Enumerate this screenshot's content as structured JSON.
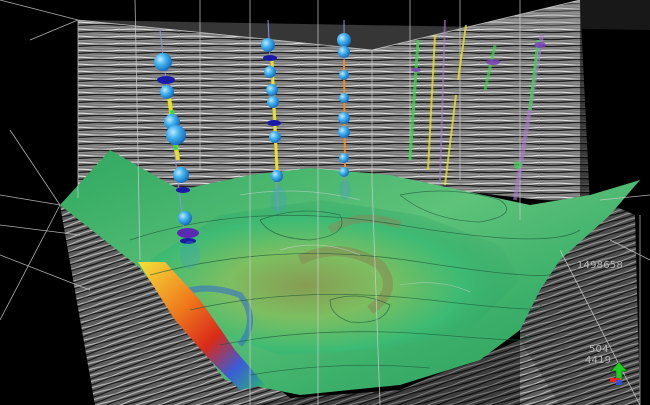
{
  "viewer": {
    "axis_labels": {
      "y_coordinate": "1498658",
      "label_a": "504",
      "label_b": "4419"
    },
    "orientation_widget": {
      "icon": "compass-arrow-icon",
      "color_up": "#22cc22",
      "color_side": "#ee2222"
    },
    "colors": {
      "background": "#000000",
      "horizon_green": "#3fbf78",
      "well_ball": "#2aa8e8",
      "well_band": "#1a1aa8",
      "well_marker_yellow": "#e8e020",
      "well_marker_green": "#39d84a"
    }
  }
}
